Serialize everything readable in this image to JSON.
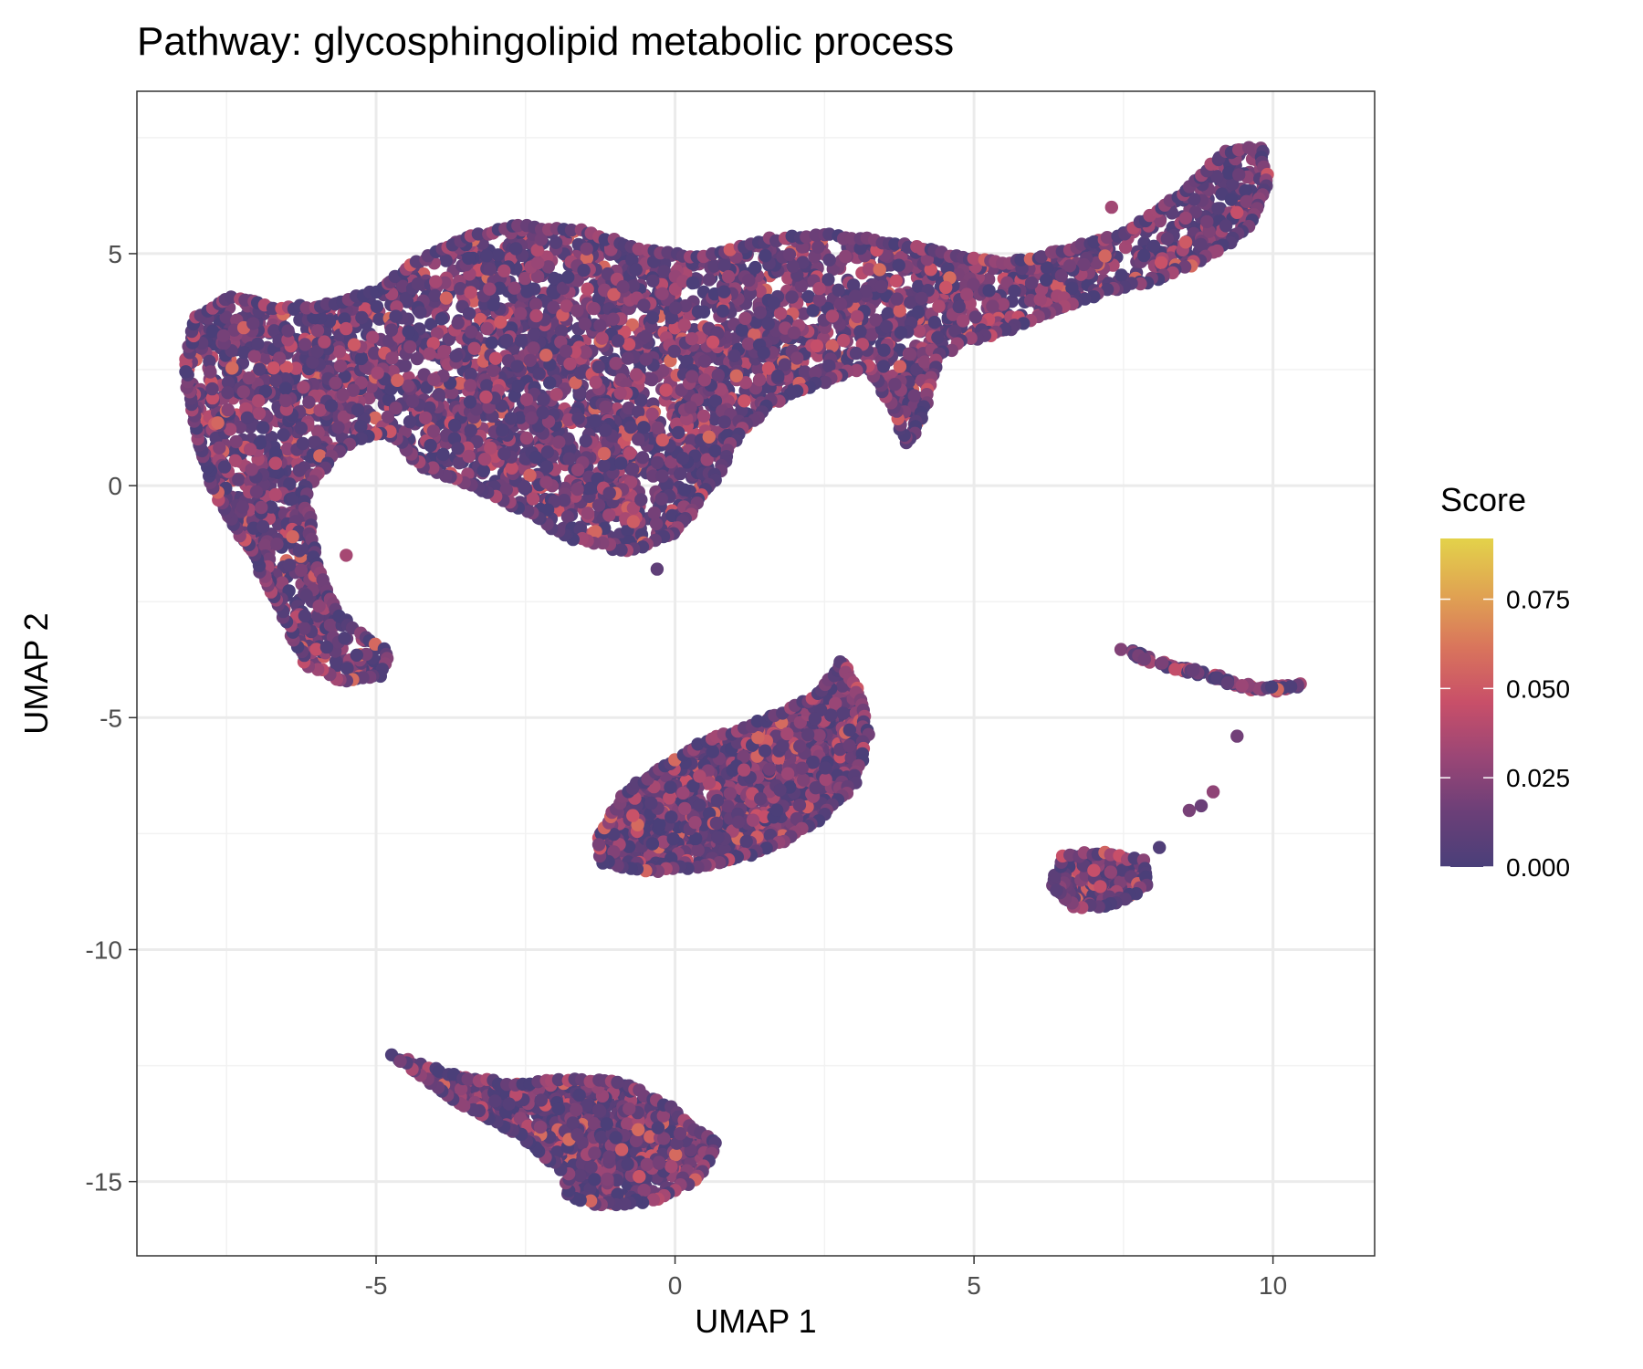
{
  "chart_data": {
    "type": "scatter",
    "title": "Pathway: glycosphingolipid metabolic process",
    "xlabel": "UMAP 1",
    "ylabel": "UMAP 2",
    "xlim": [
      -9.0,
      11.7
    ],
    "ylim": [
      -16.6,
      8.5
    ],
    "x_ticks": [
      -5,
      0,
      5,
      10
    ],
    "y_ticks": [
      5,
      0,
      -5,
      -10,
      -15
    ],
    "x_tick_labels": [
      "-5",
      "0",
      "5",
      "10"
    ],
    "y_tick_labels": [
      "5",
      "0",
      "-5",
      "-10",
      "-15"
    ],
    "grid": true,
    "legend": {
      "title": "Score",
      "placement": "right",
      "range": [
        0,
        0.092
      ],
      "ticks": [
        0.0,
        0.025,
        0.05,
        0.075
      ],
      "tick_labels": [
        "0.000",
        "0.025",
        "0.050",
        "0.075"
      ],
      "colors": [
        "#4a3f79",
        "#6b3f78",
        "#9a4676",
        "#c84f69",
        "#d9745c",
        "#e0a452",
        "#e3d24a"
      ]
    },
    "clusters": [
      {
        "shape": "polygon",
        "count": 4200,
        "vertices": [
          [
            -8.2,
            2.6
          ],
          [
            -8.0,
            3.6
          ],
          [
            -7.4,
            4.1
          ],
          [
            -6.6,
            3.8
          ],
          [
            -5.8,
            3.9
          ],
          [
            -5.0,
            4.2
          ],
          [
            -4.3,
            4.8
          ],
          [
            -3.6,
            5.3
          ],
          [
            -2.6,
            5.6
          ],
          [
            -1.6,
            5.5
          ],
          [
            -0.6,
            5.1
          ],
          [
            0.4,
            4.9
          ],
          [
            1.6,
            5.3
          ],
          [
            2.6,
            5.4
          ],
          [
            3.8,
            5.2
          ],
          [
            4.8,
            4.9
          ],
          [
            5.6,
            4.8
          ],
          [
            6.6,
            5.1
          ],
          [
            7.6,
            5.5
          ],
          [
            8.4,
            6.2
          ],
          [
            8.9,
            6.8
          ],
          [
            9.2,
            7.2
          ],
          [
            9.8,
            7.3
          ],
          [
            9.9,
            6.5
          ],
          [
            9.6,
            5.6
          ],
          [
            9.0,
            5.0
          ],
          [
            8.2,
            4.5
          ],
          [
            7.2,
            4.2
          ],
          [
            6.4,
            3.8
          ],
          [
            5.6,
            3.4
          ],
          [
            4.8,
            3.1
          ],
          [
            4.4,
            2.8
          ],
          [
            4.2,
            1.8
          ],
          [
            3.9,
            0.9
          ],
          [
            3.6,
            1.8
          ],
          [
            3.2,
            2.6
          ],
          [
            2.6,
            2.3
          ],
          [
            1.6,
            1.8
          ],
          [
            1.0,
            1.0
          ],
          [
            0.6,
            0.0
          ],
          [
            0.0,
            -1.0
          ],
          [
            -0.8,
            -1.4
          ],
          [
            -1.8,
            -1.1
          ],
          [
            -2.4,
            -0.6
          ],
          [
            -3.2,
            -0.1
          ],
          [
            -4.2,
            0.4
          ],
          [
            -4.8,
            1.2
          ],
          [
            -5.4,
            1.0
          ],
          [
            -5.8,
            0.5
          ],
          [
            -6.2,
            -0.1
          ],
          [
            -6.0,
            -1.8
          ],
          [
            -5.6,
            -2.8
          ],
          [
            -5.2,
            -3.3
          ],
          [
            -4.8,
            -3.6
          ],
          [
            -4.9,
            -4.1
          ],
          [
            -5.6,
            -4.2
          ],
          [
            -6.2,
            -3.8
          ],
          [
            -6.6,
            -2.6
          ],
          [
            -7.0,
            -1.6
          ],
          [
            -7.6,
            -0.4
          ],
          [
            -8.0,
            1.0
          ],
          [
            -8.2,
            2.6
          ]
        ]
      },
      {
        "shape": "polygon",
        "count": 1300,
        "vertices": [
          [
            -1.3,
            -7.6
          ],
          [
            -0.8,
            -6.6
          ],
          [
            0.4,
            -5.6
          ],
          [
            1.6,
            -5.0
          ],
          [
            2.4,
            -4.5
          ],
          [
            2.8,
            -3.8
          ],
          [
            3.1,
            -4.6
          ],
          [
            3.2,
            -5.4
          ],
          [
            3.0,
            -6.4
          ],
          [
            2.4,
            -7.2
          ],
          [
            1.6,
            -7.8
          ],
          [
            0.6,
            -8.2
          ],
          [
            -0.4,
            -8.3
          ],
          [
            -1.2,
            -8.1
          ],
          [
            -1.3,
            -7.6
          ]
        ]
      },
      {
        "shape": "polygon",
        "count": 900,
        "vertices": [
          [
            -4.7,
            -12.3
          ],
          [
            -3.8,
            -12.7
          ],
          [
            -2.8,
            -12.9
          ],
          [
            -1.8,
            -12.8
          ],
          [
            -0.8,
            -12.9
          ],
          [
            0.0,
            -13.5
          ],
          [
            0.7,
            -14.2
          ],
          [
            0.4,
            -14.9
          ],
          [
            -0.4,
            -15.4
          ],
          [
            -1.2,
            -15.5
          ],
          [
            -1.8,
            -15.3
          ],
          [
            -1.8,
            -14.8
          ],
          [
            -2.6,
            -14.0
          ],
          [
            -3.6,
            -13.3
          ],
          [
            -4.7,
            -12.3
          ]
        ]
      },
      {
        "shape": "polygon",
        "count": 300,
        "vertices": [
          [
            6.3,
            -8.6
          ],
          [
            6.5,
            -8.0
          ],
          [
            7.2,
            -7.9
          ],
          [
            7.8,
            -8.1
          ],
          [
            7.9,
            -8.6
          ],
          [
            7.4,
            -9.0
          ],
          [
            6.7,
            -9.1
          ],
          [
            6.3,
            -8.6
          ]
        ]
      },
      {
        "shape": "line",
        "count": 90,
        "spread": 0.12,
        "points": [
          [
            7.5,
            -3.5
          ],
          [
            8.0,
            -3.8
          ],
          [
            8.6,
            -4.0
          ],
          [
            9.2,
            -4.2
          ],
          [
            9.8,
            -4.4
          ],
          [
            10.5,
            -4.3
          ]
        ]
      },
      {
        "shape": "points",
        "points": [
          [
            9.4,
            -5.4
          ],
          [
            9.0,
            -6.6
          ],
          [
            8.8,
            -6.9
          ],
          [
            8.6,
            -7.0
          ],
          [
            8.1,
            -7.8
          ],
          [
            -0.3,
            -1.8
          ],
          [
            7.3,
            6.0
          ],
          [
            -5.5,
            -1.5
          ]
        ]
      }
    ]
  }
}
